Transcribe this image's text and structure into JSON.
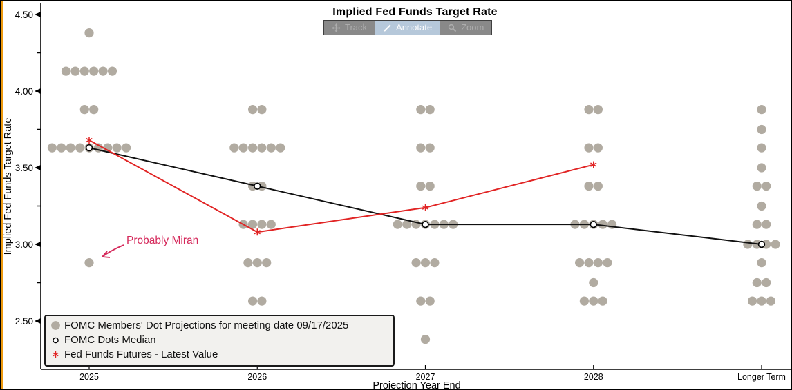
{
  "frame": {
    "background": "#ffffff",
    "border_color": "#000000",
    "accent_strip_color": "#ee9a0e"
  },
  "title": "Implied Fed Funds Target Rate",
  "toolbar": {
    "buttons": [
      {
        "label": "Track",
        "icon": "move-icon",
        "active": false
      },
      {
        "label": "Annotate",
        "icon": "pencil-icon",
        "active": true
      },
      {
        "label": "Zoom",
        "icon": "magnifier-icon",
        "active": false
      }
    ],
    "active_background": "#b6c8da",
    "inactive_background": "#898989"
  },
  "annotation": {
    "text": "Probably Miran",
    "color": "#d5295b",
    "points_to": {
      "category": "2025",
      "value": 2.88
    }
  },
  "legend": {
    "items": [
      {
        "marker": "fomc-dot",
        "label": "FOMC Members' Dot Projections for meeting date 09/17/2025"
      },
      {
        "marker": "median-circle",
        "label": "FOMC Dots Median"
      },
      {
        "marker": "futures-asterisk",
        "label": "Fed Funds Futures - Latest Value"
      }
    ]
  },
  "chart_data": {
    "type": "scatter",
    "title": "Implied Fed Funds Target Rate",
    "xlabel": "Projection Year End",
    "ylabel": "Implied Fed Funds Target Rate",
    "ylim": [
      2.28,
      4.55
    ],
    "grid": false,
    "legend_position": "bottom-left",
    "categories": [
      "2025",
      "2026",
      "2027",
      "2028",
      "Longer Term"
    ],
    "y_axis": {
      "major_ticks": [
        {
          "value": 4.5,
          "label": "4.50"
        },
        {
          "value": 4.0,
          "label": "4.00"
        },
        {
          "value": 3.5,
          "label": "3.50"
        },
        {
          "value": 3.0,
          "label": "3.00"
        },
        {
          "value": 2.5,
          "label": "2.50"
        }
      ],
      "minor_ticks": [
        4.25,
        3.75,
        3.25,
        2.75
      ]
    },
    "dots": [
      {
        "category": "2025",
        "rows": [
          {
            "value": 4.38,
            "count": 1
          },
          {
            "value": 4.13,
            "count": 6
          },
          {
            "value": 3.88,
            "count": 2
          },
          {
            "value": 3.63,
            "count": 9
          },
          {
            "value": 2.88,
            "count": 1
          }
        ]
      },
      {
        "category": "2026",
        "rows": [
          {
            "value": 3.88,
            "count": 2
          },
          {
            "value": 3.63,
            "count": 6
          },
          {
            "value": 3.38,
            "count": 2
          },
          {
            "value": 3.13,
            "count": 4
          },
          {
            "value": 2.88,
            "count": 3
          },
          {
            "value": 2.63,
            "count": 2
          }
        ]
      },
      {
        "category": "2027",
        "rows": [
          {
            "value": 3.88,
            "count": 2
          },
          {
            "value": 3.63,
            "count": 2
          },
          {
            "value": 3.38,
            "count": 2
          },
          {
            "value": 3.13,
            "count": 7
          },
          {
            "value": 2.88,
            "count": 3
          },
          {
            "value": 2.63,
            "count": 2
          },
          {
            "value": 2.38,
            "count": 1
          }
        ]
      },
      {
        "category": "2028",
        "rows": [
          {
            "value": 3.88,
            "count": 2
          },
          {
            "value": 3.63,
            "count": 2
          },
          {
            "value": 3.38,
            "count": 2
          },
          {
            "value": 3.13,
            "count": 5
          },
          {
            "value": 2.88,
            "count": 4
          },
          {
            "value": 2.75,
            "count": 1
          },
          {
            "value": 2.63,
            "count": 3
          }
        ]
      },
      {
        "category": "Longer Term",
        "rows": [
          {
            "value": 3.88,
            "count": 1
          },
          {
            "value": 3.75,
            "count": 1
          },
          {
            "value": 3.63,
            "count": 1
          },
          {
            "value": 3.5,
            "count": 1
          },
          {
            "value": 3.38,
            "count": 2
          },
          {
            "value": 3.25,
            "count": 1
          },
          {
            "value": 3.13,
            "count": 2
          },
          {
            "value": 3.0,
            "count": 4
          },
          {
            "value": 2.88,
            "count": 1
          },
          {
            "value": 2.75,
            "count": 2
          },
          {
            "value": 2.63,
            "count": 3
          }
        ]
      }
    ],
    "median_series": {
      "name": "FOMC Dots Median",
      "values": [
        3.63,
        3.38,
        3.13,
        3.13,
        3.0
      ]
    },
    "futures_series": {
      "name": "Fed Funds Futures - Latest Value",
      "values": [
        3.68,
        3.08,
        3.24,
        3.52,
        null
      ]
    },
    "colors": {
      "dots": "#b1aba1",
      "median_line": "#111111",
      "median_marker_fill": "#ffffff",
      "futures": "#e12424"
    }
  }
}
